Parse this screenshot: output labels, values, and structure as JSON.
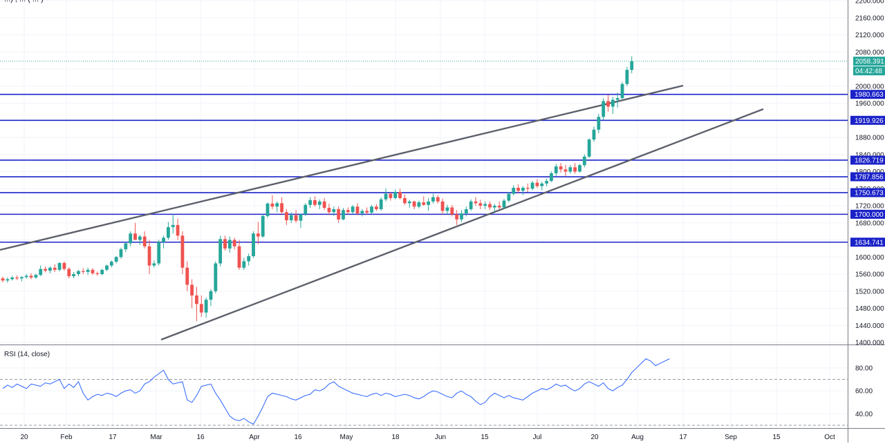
{
  "header": {
    "symbol_partial": "...) , ... ( ... )"
  },
  "price_pane": {
    "price_labels": [
      "2160.000",
      "2120.000",
      "2080.000",
      "2000.000",
      "1960.000",
      "1880.000",
      "1840.000",
      "1800.000",
      "1760.000",
      "1720.000",
      "1680.000",
      "1600.000",
      "1560.000",
      "1520.000",
      "1480.000",
      "1440.000",
      "1400.000",
      "2200.000"
    ],
    "last_price": {
      "value": "2058.391",
      "countdown": "04:42:48",
      "color": "#26a69a"
    },
    "hlines": [
      {
        "label": "1980.663",
        "value": 1980.663
      },
      {
        "label": "1919.926",
        "value": 1919.926
      },
      {
        "label": "1826.719",
        "value": 1826.719
      },
      {
        "label": "1787.856",
        "value": 1787.856
      },
      {
        "label": "1750.673",
        "value": 1750.673
      },
      {
        "label": "1700.000",
        "value": 1700.0
      },
      {
        "label": "1634.741",
        "value": 1634.741
      }
    ],
    "hline_color": "#1a22c8"
  },
  "time_axis": {
    "labels": [
      "20",
      "Feb",
      "17",
      "Mar",
      "16",
      "Apr",
      "16",
      "May",
      "18",
      "Jun",
      "15",
      "Jul",
      "20",
      "Aug",
      "17",
      "Sep",
      "15",
      "Oct"
    ]
  },
  "rsi_pane": {
    "title": "RSI (14, close)",
    "labels": [
      "80.00",
      "60.00",
      "40.00"
    ],
    "line_color": "#2962ff"
  },
  "chart_data": {
    "type": "candlestick",
    "up_color": "#26a69a",
    "down_color": "#ef5350",
    "ylim": [
      1400,
      2200
    ],
    "grid": true,
    "candles": [
      [
        1550,
        1554,
        1541,
        1545
      ],
      [
        1545,
        1552,
        1540,
        1548
      ],
      [
        1548,
        1556,
        1545,
        1552
      ],
      [
        1552,
        1557,
        1546,
        1550
      ],
      [
        1550,
        1555,
        1543,
        1553
      ],
      [
        1553,
        1560,
        1549,
        1556
      ],
      [
        1556,
        1562,
        1548,
        1552
      ],
      [
        1552,
        1561,
        1549,
        1558
      ],
      [
        1558,
        1580,
        1555,
        1572
      ],
      [
        1572,
        1578,
        1564,
        1568
      ],
      [
        1568,
        1578,
        1562,
        1575
      ],
      [
        1575,
        1583,
        1565,
        1570
      ],
      [
        1570,
        1588,
        1566,
        1586
      ],
      [
        1586,
        1590,
        1568,
        1572
      ],
      [
        1572,
        1576,
        1550,
        1555
      ],
      [
        1555,
        1565,
        1550,
        1560
      ],
      [
        1560,
        1570,
        1555,
        1567
      ],
      [
        1567,
        1574,
        1560,
        1565
      ],
      [
        1565,
        1575,
        1558,
        1570
      ],
      [
        1570,
        1574,
        1558,
        1562
      ],
      [
        1562,
        1566,
        1556,
        1560
      ],
      [
        1560,
        1572,
        1557,
        1570
      ],
      [
        1570,
        1582,
        1567,
        1580
      ],
      [
        1580,
        1592,
        1576,
        1589
      ],
      [
        1589,
        1602,
        1585,
        1600
      ],
      [
        1600,
        1622,
        1596,
        1618
      ],
      [
        1618,
        1635,
        1612,
        1632
      ],
      [
        1632,
        1660,
        1625,
        1655
      ],
      [
        1655,
        1680,
        1645,
        1640
      ],
      [
        1640,
        1652,
        1628,
        1648
      ],
      [
        1648,
        1660,
        1620,
        1625
      ],
      [
        1625,
        1640,
        1560,
        1580
      ],
      [
        1580,
        1592,
        1575,
        1585
      ],
      [
        1585,
        1640,
        1580,
        1635
      ],
      [
        1635,
        1650,
        1620,
        1645
      ],
      [
        1645,
        1682,
        1640,
        1670
      ],
      [
        1670,
        1700,
        1655,
        1675
      ],
      [
        1675,
        1690,
        1640,
        1650
      ],
      [
        1650,
        1660,
        1560,
        1575
      ],
      [
        1575,
        1590,
        1520,
        1535
      ],
      [
        1535,
        1548,
        1480,
        1510
      ],
      [
        1510,
        1530,
        1450,
        1490
      ],
      [
        1490,
        1510,
        1460,
        1470
      ],
      [
        1470,
        1505,
        1458,
        1500
      ],
      [
        1500,
        1525,
        1485,
        1520
      ],
      [
        1520,
        1590,
        1515,
        1585
      ],
      [
        1585,
        1650,
        1578,
        1642
      ],
      [
        1642,
        1650,
        1615,
        1620
      ],
      [
        1620,
        1648,
        1610,
        1640
      ],
      [
        1640,
        1645,
        1618,
        1625
      ],
      [
        1625,
        1640,
        1570,
        1575
      ],
      [
        1575,
        1598,
        1570,
        1590
      ],
      [
        1590,
        1608,
        1580,
        1602
      ],
      [
        1602,
        1660,
        1598,
        1655
      ],
      [
        1655,
        1682,
        1630,
        1648
      ],
      [
        1648,
        1700,
        1645,
        1696
      ],
      [
        1696,
        1728,
        1692,
        1725
      ],
      [
        1725,
        1745,
        1712,
        1718
      ],
      [
        1718,
        1730,
        1705,
        1726
      ],
      [
        1726,
        1740,
        1700,
        1705
      ],
      [
        1705,
        1712,
        1675,
        1686
      ],
      [
        1686,
        1705,
        1680,
        1698
      ],
      [
        1698,
        1710,
        1680,
        1685
      ],
      [
        1685,
        1702,
        1668,
        1700
      ],
      [
        1700,
        1726,
        1696,
        1722
      ],
      [
        1722,
        1740,
        1715,
        1733
      ],
      [
        1733,
        1742,
        1718,
        1722
      ],
      [
        1722,
        1735,
        1712,
        1730
      ],
      [
        1730,
        1738,
        1710,
        1715
      ],
      [
        1715,
        1725,
        1698,
        1705
      ],
      [
        1705,
        1718,
        1696,
        1712
      ],
      [
        1712,
        1718,
        1680,
        1688
      ],
      [
        1688,
        1715,
        1686,
        1710
      ],
      [
        1710,
        1716,
        1700,
        1705
      ],
      [
        1705,
        1722,
        1700,
        1718
      ],
      [
        1718,
        1726,
        1698,
        1702
      ],
      [
        1702,
        1712,
        1695,
        1708
      ],
      [
        1708,
        1716,
        1700,
        1704
      ],
      [
        1704,
        1722,
        1700,
        1718
      ],
      [
        1718,
        1724,
        1708,
        1712
      ],
      [
        1712,
        1740,
        1708,
        1735
      ],
      [
        1735,
        1760,
        1730,
        1748
      ],
      [
        1748,
        1752,
        1732,
        1738
      ],
      [
        1738,
        1758,
        1735,
        1752
      ],
      [
        1752,
        1760,
        1735,
        1738
      ],
      [
        1738,
        1746,
        1722,
        1726
      ],
      [
        1726,
        1734,
        1715,
        1730
      ],
      [
        1730,
        1732,
        1712,
        1718
      ],
      [
        1718,
        1732,
        1714,
        1728
      ],
      [
        1728,
        1742,
        1720,
        1722
      ],
      [
        1722,
        1738,
        1708,
        1730
      ],
      [
        1730,
        1748,
        1725,
        1740
      ],
      [
        1740,
        1745,
        1725,
        1730
      ],
      [
        1730,
        1737,
        1700,
        1708
      ],
      [
        1708,
        1722,
        1700,
        1716
      ],
      [
        1716,
        1722,
        1695,
        1700
      ],
      [
        1700,
        1710,
        1675,
        1688
      ],
      [
        1688,
        1710,
        1682,
        1702
      ],
      [
        1702,
        1718,
        1695,
        1712
      ],
      [
        1712,
        1735,
        1708,
        1730
      ],
      [
        1730,
        1740,
        1720,
        1726
      ],
      [
        1726,
        1734,
        1712,
        1720
      ],
      [
        1720,
        1730,
        1712,
        1724
      ],
      [
        1724,
        1730,
        1710,
        1716
      ],
      [
        1716,
        1724,
        1706,
        1720
      ],
      [
        1720,
        1730,
        1712,
        1716
      ],
      [
        1716,
        1736,
        1712,
        1732
      ],
      [
        1732,
        1752,
        1728,
        1748
      ],
      [
        1748,
        1768,
        1744,
        1762
      ],
      [
        1762,
        1770,
        1750,
        1755
      ],
      [
        1755,
        1766,
        1745,
        1762
      ],
      [
        1762,
        1772,
        1752,
        1760
      ],
      [
        1760,
        1778,
        1756,
        1774
      ],
      [
        1774,
        1782,
        1762,
        1766
      ],
      [
        1766,
        1776,
        1756,
        1772
      ],
      [
        1772,
        1784,
        1765,
        1778
      ],
      [
        1778,
        1800,
        1775,
        1796
      ],
      [
        1796,
        1818,
        1790,
        1812
      ],
      [
        1812,
        1820,
        1798,
        1805
      ],
      [
        1805,
        1815,
        1790,
        1800
      ],
      [
        1800,
        1815,
        1795,
        1810
      ],
      [
        1810,
        1820,
        1795,
        1800
      ],
      [
        1800,
        1818,
        1798,
        1815
      ],
      [
        1815,
        1840,
        1810,
        1835
      ],
      [
        1835,
        1878,
        1832,
        1875
      ],
      [
        1875,
        1905,
        1870,
        1898
      ],
      [
        1898,
        1935,
        1890,
        1928
      ],
      [
        1928,
        1972,
        1920,
        1965
      ],
      [
        1965,
        1980,
        1940,
        1952
      ],
      [
        1952,
        1975,
        1935,
        1968
      ],
      [
        1968,
        1985,
        1950,
        1972
      ],
      [
        1972,
        2010,
        1968,
        2005
      ],
      [
        2005,
        2045,
        2000,
        2038
      ],
      [
        2038,
        2070,
        2030,
        2058
      ]
    ],
    "hlines": [
      1980.663,
      1919.926,
      1826.719,
      1787.856,
      1750.673,
      1700.0,
      1634.741
    ],
    "trendlines": [
      {
        "p1": [
          0,
          1660
        ],
        "p2": [
          130,
          2000
        ]
      },
      {
        "p1": [
          31,
          1405
        ],
        "p2": [
          140,
          1940
        ]
      }
    ],
    "rsi": {
      "ylim": [
        30,
        95
      ],
      "levels": [
        70,
        30
      ],
      "values": [
        62,
        65,
        63,
        66,
        64,
        62,
        66,
        65,
        64,
        67,
        66,
        68,
        70,
        62,
        66,
        63,
        68,
        58,
        52,
        55,
        57,
        56,
        58,
        57,
        55,
        58,
        60,
        61,
        58,
        60,
        66,
        68,
        72,
        75,
        78,
        70,
        66,
        67,
        68,
        52,
        50,
        56,
        64,
        65,
        66,
        58,
        52,
        45,
        38,
        35,
        34,
        36,
        33,
        31,
        38,
        46,
        55,
        58,
        57,
        56,
        55,
        53,
        52,
        54,
        56,
        57,
        61,
        60,
        62,
        66,
        68,
        64,
        62,
        60,
        58,
        57,
        56,
        55,
        57,
        58,
        56,
        58,
        57,
        55,
        56,
        57,
        56,
        54,
        53,
        55,
        58,
        60,
        59,
        57,
        55,
        54,
        58,
        60,
        57,
        55,
        51,
        48,
        50,
        55,
        58,
        56,
        54,
        56,
        54,
        53,
        52,
        55,
        58,
        60,
        62,
        61,
        63,
        66,
        64,
        65,
        62,
        60,
        62,
        66,
        68,
        66,
        64,
        67,
        62,
        60,
        63,
        65,
        70,
        76,
        80,
        84,
        88,
        86,
        82,
        84,
        86,
        88
      ]
    }
  }
}
